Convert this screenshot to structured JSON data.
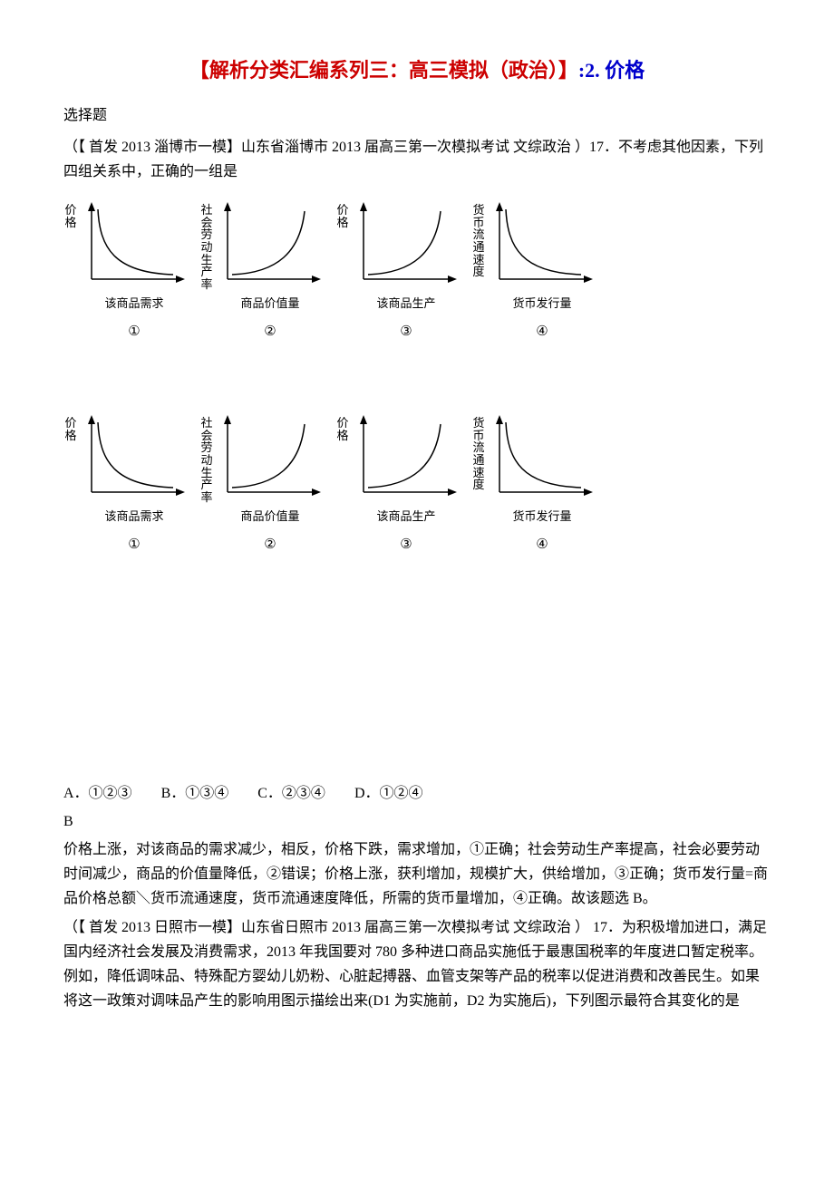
{
  "title": {
    "part_red_open": "【解析分类汇编系列三：高三模拟（政治）】",
    "part_blue": ":2. 价格"
  },
  "heading_select": "选择题",
  "q17": {
    "intro": "（【 首发 2013 淄博市一模】山东省淄博市 2013 届高三第一次模拟考试 文综政治 ）17．不考虑其他因素，下列四组关系中，正确的一组是"
  },
  "chart_row": {
    "axis_color": "#000000",
    "curve_color": "#000000",
    "bg_color": "#ffffff",
    "font_size_label": 13,
    "line_width": 1.5,
    "charts": [
      {
        "num": "①",
        "ylabel": "价格",
        "xlabel": "该商品需求",
        "curve": "down",
        "ylabel_orientation": "vertical"
      },
      {
        "num": "②",
        "ylabel": "社会劳动生产率",
        "xlabel": "商品价值量",
        "curve": "up",
        "ylabel_orientation": "vertical"
      },
      {
        "num": "③",
        "ylabel": "价格",
        "xlabel": "该商品生产",
        "curve": "up",
        "ylabel_orientation": "vertical"
      },
      {
        "num": "④",
        "ylabel": "货币流通速度",
        "xlabel": "货币发行量",
        "curve": "down",
        "ylabel_orientation": "vertical"
      }
    ]
  },
  "options": {
    "A": "A．①②③",
    "B": "B．①③④",
    "C": "C．②③④",
    "D": "D．①②④"
  },
  "answer": "B",
  "explanation": "价格上涨，对该商品的需求减少，相反，价格下跌，需求增加，①正确；社会劳动生产率提高，社会必要劳动时间减少，商品的价值量降低，②错误；价格上涨，获利增加，规模扩大，供给增加，③正确；货币发行量=商品价格总额＼货币流通速度，货币流通速度降低，所需的货币量增加，④正确。故该题选 B。",
  "q17b": {
    "intro": "（【 首发 2013 日照市一模】山东省日照市 2013 届高三第一次模拟考试 文综政治 ） 17．为积极增加进口，满足国内经济社会发展及消费需求，2013 年我国要对 780 多种进口商品实施低于最惠国税率的年度进口暂定税率。例如，降低调味品、特殊配方婴幼儿奶粉、心脏起搏器、血管支架等产品的税率以促进消费和改善民生。如果将这一政策对调味品产生的影响用图示描绘出来(D1 为实施前，D2 为实施后)，下列图示最符合其变化的是"
  }
}
